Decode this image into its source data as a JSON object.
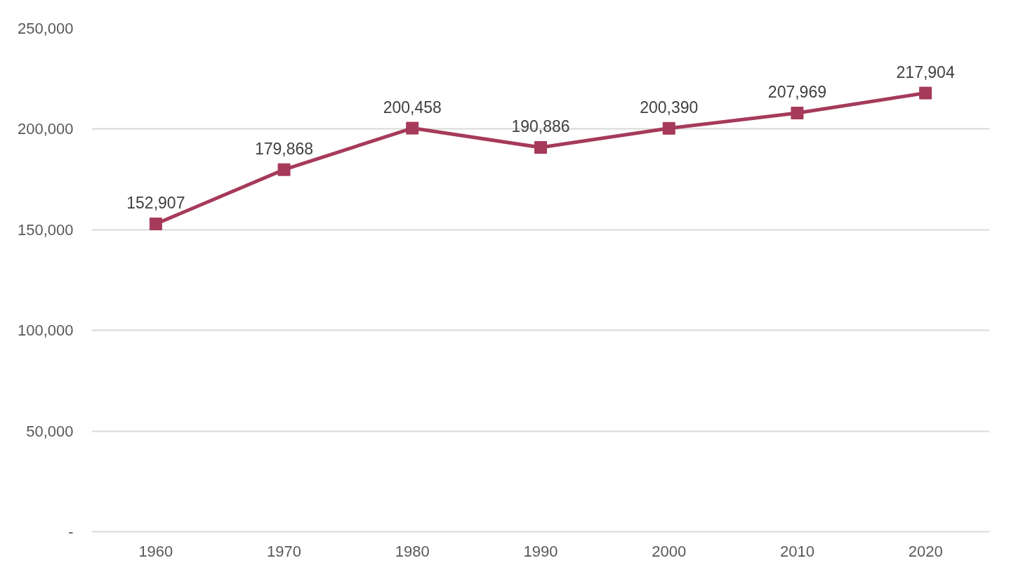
{
  "chart_data": {
    "type": "line",
    "categories": [
      "1960",
      "1970",
      "1980",
      "1990",
      "2000",
      "2010",
      "2020"
    ],
    "series": [
      {
        "color": "#a63a5a",
        "values": [
          152907,
          179868,
          200458,
          190886,
          200390,
          207969,
          217904
        ],
        "value_labels": [
          "152,907",
          "179,868",
          "200,458",
          "190,886",
          "200,390",
          "207,969",
          "217,904"
        ]
      }
    ],
    "ylim": [
      0,
      250000
    ],
    "yticks": [
      {
        "value": 0,
        "label": "-"
      },
      {
        "value": 50000,
        "label": "50,000"
      },
      {
        "value": 100000,
        "label": "100,000"
      },
      {
        "value": 150000,
        "label": "150,000"
      },
      {
        "value": 200000,
        "label": "200,000"
      },
      {
        "value": 250000,
        "label": "250,000"
      }
    ],
    "grid": "y",
    "marker": "square",
    "line_style": "solid"
  }
}
